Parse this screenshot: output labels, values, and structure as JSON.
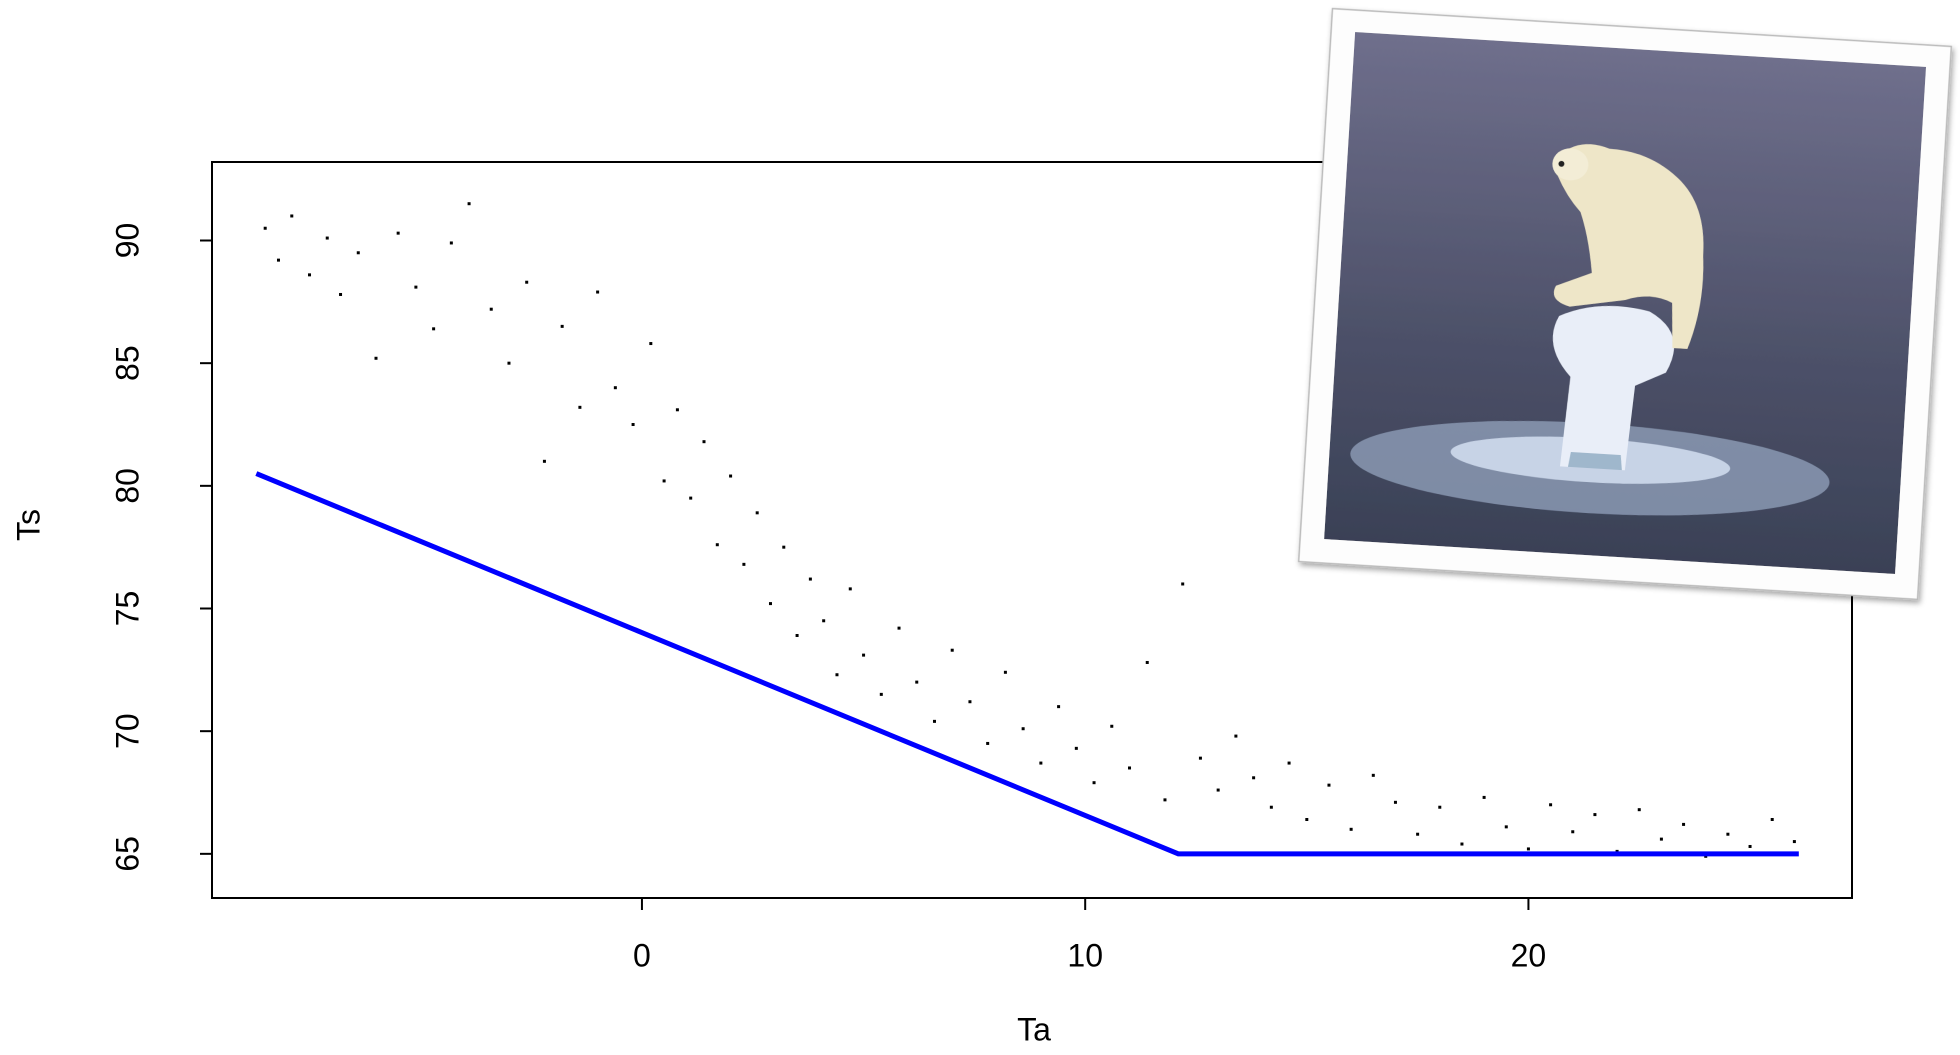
{
  "chart_data": {
    "type": "scatter",
    "xlabel": "Ta",
    "ylabel": "Ts",
    "xlim": [
      -9.7,
      27.3
    ],
    "ylim": [
      63.2,
      93.2
    ],
    "xticks": [
      0,
      10,
      20
    ],
    "yticks": [
      65,
      70,
      75,
      80,
      85,
      90
    ],
    "series": [
      {
        "type": "scatter",
        "color": "#000000",
        "x": [
          -8.5,
          -8.2,
          -7.9,
          -7.5,
          -7.1,
          -6.8,
          -6.4,
          -6.0,
          -5.5,
          -5.1,
          -4.7,
          -4.3,
          -3.9,
          -3.4,
          -3.0,
          -2.6,
          -2.2,
          -1.8,
          -1.4,
          -1.0,
          -0.6,
          -0.2,
          0.2,
          0.5,
          0.8,
          1.1,
          1.4,
          1.7,
          2.0,
          2.3,
          2.6,
          2.9,
          3.2,
          3.5,
          3.8,
          4.1,
          4.4,
          4.7,
          5.0,
          5.4,
          5.8,
          6.2,
          6.6,
          7.0,
          7.4,
          7.8,
          8.2,
          8.6,
          9.0,
          9.4,
          9.8,
          10.2,
          10.6,
          11.0,
          11.4,
          11.8,
          12.2,
          12.6,
          13.0,
          13.4,
          13.8,
          14.2,
          14.6,
          15.0,
          15.5,
          16.0,
          16.5,
          17.0,
          17.5,
          18.0,
          18.5,
          19.0,
          19.5,
          20.0,
          20.5,
          21.0,
          21.5,
          22.0,
          22.5,
          23.0,
          23.5,
          24.0,
          24.5,
          25.0,
          25.5,
          26.0
        ],
        "values": [
          90.5,
          89.2,
          91.0,
          88.6,
          90.1,
          87.8,
          89.5,
          85.2,
          90.3,
          88.1,
          86.4,
          89.9,
          91.5,
          87.2,
          85.0,
          88.3,
          81.0,
          86.5,
          83.2,
          87.9,
          84.0,
          82.5,
          85.8,
          80.2,
          83.1,
          79.5,
          81.8,
          77.6,
          80.4,
          76.8,
          78.9,
          75.2,
          77.5,
          73.9,
          76.2,
          74.5,
          72.3,
          75.8,
          73.1,
          71.5,
          74.2,
          72.0,
          70.4,
          73.3,
          71.2,
          69.5,
          72.4,
          70.1,
          68.7,
          71.0,
          69.3,
          67.9,
          70.2,
          68.5,
          72.8,
          67.2,
          76.0,
          68.9,
          67.6,
          69.8,
          68.1,
          66.9,
          68.7,
          66.4,
          67.8,
          66.0,
          68.2,
          67.1,
          65.8,
          66.9,
          65.4,
          67.3,
          66.1,
          65.2,
          67.0,
          65.9,
          66.6,
          65.1,
          66.8,
          65.6,
          66.2,
          64.9,
          65.8,
          65.3,
          66.4,
          65.5
        ]
      },
      {
        "type": "line",
        "color": "#0000ff",
        "x": [
          -8.7,
          12.1,
          26.1
        ],
        "values": [
          80.5,
          65,
          65
        ]
      }
    ]
  }
}
